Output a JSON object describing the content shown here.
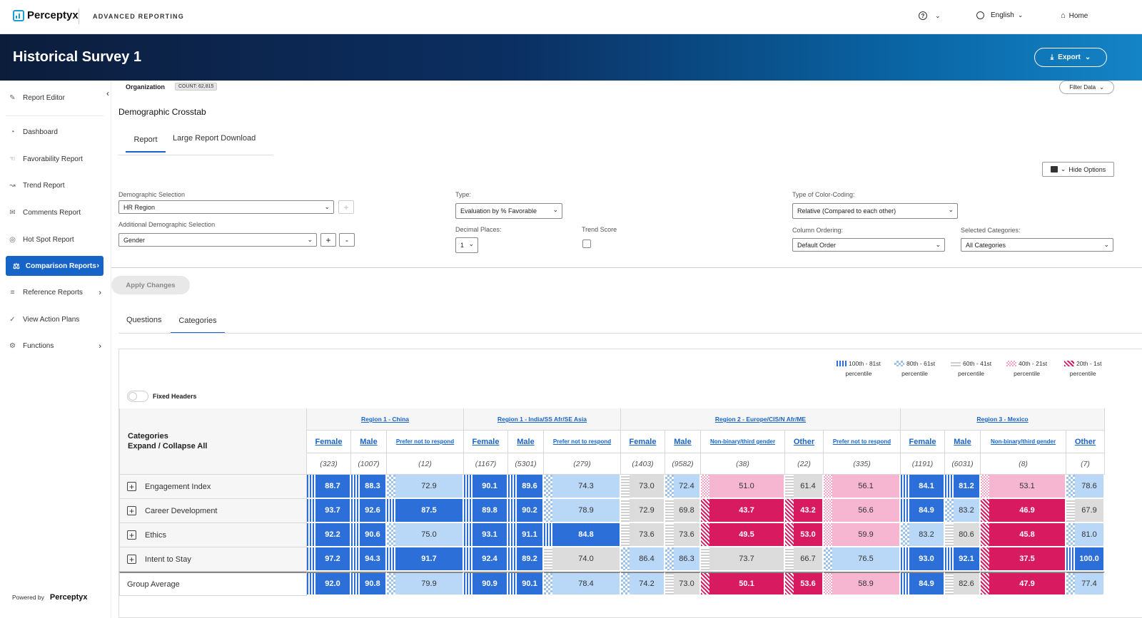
{
  "app": {
    "brand": "Perceptyx",
    "product": "ADVANCED REPORTING"
  },
  "topnav": {
    "help_icon": "help-circle-icon",
    "language": "English",
    "home": "Home"
  },
  "banner": {
    "title": "Historical Survey 1",
    "export_label": "Export"
  },
  "sidebar": {
    "items": [
      {
        "label": "Report Editor",
        "icon": "edit-icon"
      },
      {
        "label": "Dashboard",
        "icon": "gauge-icon"
      },
      {
        "label": "Favorability Report",
        "icon": "thumbs-up-icon"
      },
      {
        "label": "Trend Report",
        "icon": "line-chart-icon"
      },
      {
        "label": "Comments Report",
        "icon": "comments-icon"
      },
      {
        "label": "Hot Spot Report",
        "icon": "target-icon"
      },
      {
        "label": "Comparison Reports",
        "icon": "scale-icon"
      },
      {
        "label": "Reference Reports",
        "icon": "list-icon"
      },
      {
        "label": "View Action Plans",
        "icon": "check-circle-icon"
      },
      {
        "label": "Functions",
        "icon": "gear-icon"
      }
    ],
    "powered_by": "Powered by",
    "powered_brand": "Perceptyx"
  },
  "org": {
    "label": "Organization",
    "count": "COUNT: 62,815",
    "filter_label": "Filter Data"
  },
  "page": {
    "title": "Demographic Crosstab",
    "tabs": [
      "Report",
      "Large Report Download"
    ],
    "hide_options": "Hide Options",
    "apply": "Apply Changes",
    "subtabs": [
      "Questions",
      "Categories"
    ]
  },
  "options": {
    "demographic_label": "Demographic Selection",
    "demographic_value": "HR Region",
    "additional_label": "Additional Demographic Selection",
    "additional_value": "Gender",
    "type_label": "Type:",
    "type_value": "Evaluation by % Favorable",
    "decimal_label": "Decimal Places:",
    "decimal_value": "1",
    "trend_label": "Trend Score",
    "color_label": "Type of Color-Coding:",
    "color_value": "Relative (Compared to each other)",
    "ordering_label": "Column Ordering:",
    "ordering_value": "Default Order",
    "categories_label": "Selected Categories:",
    "categories_value": "All Categories"
  },
  "legend": [
    {
      "line1": "100th - 81st",
      "line2": "percentile"
    },
    {
      "line1": "80th - 61st",
      "line2": "percentile"
    },
    {
      "line1": "60th - 41st",
      "line2": "percentile"
    },
    {
      "line1": "40th - 21st",
      "line2": "percentile"
    },
    {
      "line1": "20th - 1st",
      "line2": "percentile"
    }
  ],
  "table": {
    "fixed_headers": "Fixed Headers",
    "corner_line1": "Categories",
    "corner_line2": "Expand / Collapse All",
    "groups": [
      "Region 1 - China",
      "Region 1 - India/SS Afr/SE Asia",
      "Region 2 - Europe/CIS/N Afr/ME",
      "Region 3 - Mexico"
    ],
    "columns": [
      "Female",
      "Male",
      "Prefer not to respond",
      "Female",
      "Male",
      "Prefer not to respond",
      "Female",
      "Male",
      "Non-binary/third gender",
      "Other",
      "Prefer not to respond",
      "Female",
      "Male",
      "Non-binary/third gender",
      "Other"
    ],
    "counts": [
      "(323)",
      "(1007)",
      "(12)",
      "(1167)",
      "(5301)",
      "(279)",
      "(1403)",
      "(9582)",
      "(38)",
      "(22)",
      "(335)",
      "(1191)",
      "(6031)",
      "(8)",
      "(7)"
    ],
    "rows": [
      {
        "label": "Engagement Index",
        "values": [
          "88.7",
          "88.3",
          "72.9",
          "90.1",
          "89.6",
          "74.3",
          "73.0",
          "72.4",
          "51.0",
          "61.4",
          "56.1",
          "84.1",
          "81.2",
          "53.1",
          "78.6"
        ],
        "bands": [
          1,
          1,
          2,
          1,
          1,
          2,
          3,
          2,
          4,
          3,
          4,
          1,
          1,
          4,
          2
        ]
      },
      {
        "label": "Career Development",
        "values": [
          "93.7",
          "92.6",
          "87.5",
          "89.8",
          "90.2",
          "78.9",
          "72.9",
          "69.8",
          "43.7",
          "43.2",
          "56.6",
          "84.9",
          "83.2",
          "46.9",
          "67.9"
        ],
        "bands": [
          1,
          1,
          1,
          1,
          1,
          2,
          3,
          3,
          5,
          5,
          4,
          1,
          2,
          5,
          3
        ]
      },
      {
        "label": "Ethics",
        "values": [
          "92.2",
          "90.6",
          "75.0",
          "93.1",
          "91.1",
          "84.8",
          "73.6",
          "73.6",
          "49.5",
          "53.0",
          "59.9",
          "83.2",
          "80.6",
          "45.8",
          "81.0"
        ],
        "bands": [
          1,
          1,
          2,
          1,
          1,
          1,
          3,
          3,
          5,
          5,
          4,
          2,
          3,
          5,
          2
        ]
      },
      {
        "label": "Intent to Stay",
        "values": [
          "97.2",
          "94.3",
          "91.7",
          "92.4",
          "89.2",
          "74.0",
          "86.4",
          "86.3",
          "73.7",
          "66.7",
          "76.5",
          "93.0",
          "92.1",
          "37.5",
          "100.0"
        ],
        "bands": [
          1,
          1,
          1,
          1,
          1,
          3,
          2,
          2,
          3,
          3,
          2,
          1,
          1,
          5,
          1
        ]
      },
      {
        "label": "Group Average",
        "values": [
          "92.0",
          "90.8",
          "79.9",
          "90.9",
          "90.1",
          "78.4",
          "74.2",
          "73.0",
          "50.1",
          "53.6",
          "58.9",
          "84.9",
          "82.6",
          "47.9",
          "77.4"
        ],
        "bands": [
          1,
          1,
          2,
          1,
          1,
          2,
          2,
          3,
          5,
          5,
          4,
          1,
          3,
          5,
          2
        ]
      }
    ]
  }
}
